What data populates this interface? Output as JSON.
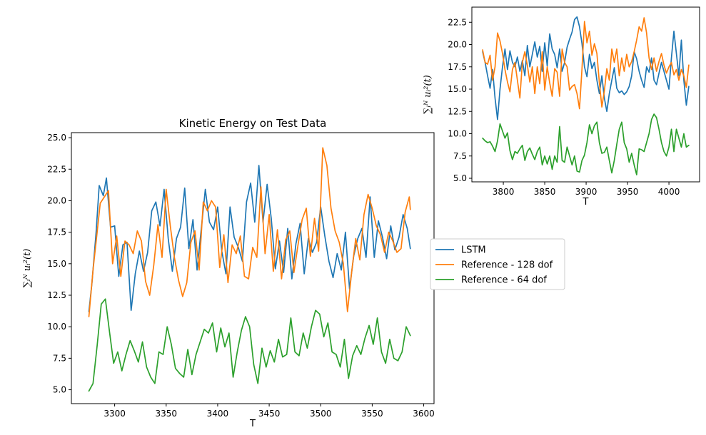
{
  "chart_data": [
    {
      "type": "line",
      "title": "Kinetic Energy on Test Data",
      "xlabel": "T",
      "ylabel": "∑ᵢᴺ uᵢ²(t)",
      "xlim": [
        3258,
        3610
      ],
      "ylim": [
        3.9,
        25.4
      ],
      "xticks": [
        3300,
        3350,
        3400,
        3450,
        3500,
        3550,
        3600
      ],
      "yticks": [
        5.0,
        7.5,
        10.0,
        12.5,
        15.0,
        17.5,
        20.0,
        22.5,
        25.0
      ],
      "ytick_labels": [
        "5.0",
        "7.5",
        "10.0",
        "12.5",
        "15.0",
        "17.5",
        "20.0",
        "22.5",
        "25.0"
      ],
      "grid": false,
      "series": [
        {
          "name": "LSTM",
          "color": "#1f77b4",
          "x": [
            3275,
            3278,
            3282,
            3285,
            3289,
            3292,
            3296,
            3300,
            3304,
            3308,
            3312,
            3316,
            3320,
            3324,
            3328,
            3332,
            3336,
            3340,
            3344,
            3348,
            3352,
            3356,
            3360,
            3364,
            3368,
            3372,
            3376,
            3380,
            3384,
            3388,
            3392,
            3396,
            3400,
            3404,
            3408,
            3412,
            3416,
            3420,
            3424,
            3428,
            3432,
            3436,
            3440,
            3444,
            3448,
            3452,
            3456,
            3460,
            3464,
            3468,
            3472,
            3476,
            3480,
            3484,
            3488,
            3492,
            3496,
            3500,
            3504,
            3508,
            3512,
            3516,
            3520,
            3524,
            3528,
            3532,
            3536,
            3540,
            3544,
            3548,
            3552,
            3556,
            3560,
            3564,
            3568,
            3572,
            3576,
            3580,
            3584,
            3587
          ],
          "y": [
            11.2,
            13.5,
            17.5,
            21.2,
            20.4,
            21.8,
            17.9,
            18.0,
            14.0,
            16.5,
            16.7,
            11.3,
            14.2,
            16.0,
            14.4,
            15.9,
            19.2,
            19.9,
            18.0,
            20.9,
            17.0,
            14.4,
            17.0,
            17.9,
            21.0,
            16.2,
            18.5,
            14.5,
            17.7,
            20.9,
            18.3,
            17.7,
            19.5,
            16.0,
            14.2,
            19.5,
            17.1,
            16.3,
            15.2,
            19.9,
            21.4,
            18.3,
            22.8,
            18.3,
            21.3,
            18.6,
            14.6,
            16.8,
            14.3,
            17.8,
            13.8,
            16.6,
            18.2,
            14.2,
            17.0,
            15.9,
            16.7,
            19.5,
            17.2,
            15.2,
            13.9,
            15.8,
            14.5,
            17.5,
            13.0,
            15.6,
            17.0,
            17.8,
            15.5,
            20.3,
            15.5,
            18.4,
            17.1,
            15.4,
            18.0,
            16.1,
            17.1,
            18.9,
            17.8,
            16.2
          ]
        },
        {
          "name": "Reference - 128 dof",
          "color": "#ff7f0e",
          "x": [
            3275,
            3279,
            3283,
            3286,
            3290,
            3294,
            3298,
            3302,
            3306,
            3310,
            3314,
            3318,
            3322,
            3326,
            3330,
            3334,
            3338,
            3342,
            3346,
            3350,
            3354,
            3358,
            3362,
            3366,
            3370,
            3374,
            3378,
            3382,
            3386,
            3390,
            3394,
            3398,
            3402,
            3406,
            3410,
            3414,
            3418,
            3422,
            3426,
            3430,
            3434,
            3438,
            3442,
            3446,
            3450,
            3454,
            3458,
            3462,
            3466,
            3470,
            3474,
            3478,
            3482,
            3486,
            3490,
            3494,
            3498,
            3502,
            3506,
            3510,
            3514,
            3518,
            3522,
            3526,
            3530,
            3534,
            3538,
            3542,
            3546,
            3550,
            3554,
            3558,
            3562,
            3566,
            3570,
            3574,
            3578,
            3582,
            3586,
            3587
          ],
          "y": [
            10.8,
            14.5,
            17.5,
            19.8,
            20.3,
            20.8,
            15.0,
            17.2,
            14.0,
            16.8,
            16.5,
            15.8,
            17.6,
            16.8,
            13.6,
            12.5,
            14.9,
            18.1,
            15.5,
            20.9,
            18.0,
            15.5,
            13.7,
            12.4,
            13.5,
            16.7,
            17.6,
            14.5,
            19.9,
            19.2,
            20.0,
            19.5,
            14.7,
            17.3,
            13.5,
            16.5,
            15.8,
            17.2,
            14.0,
            13.8,
            16.3,
            15.5,
            21.1,
            15.8,
            18.9,
            14.4,
            17.7,
            13.8,
            16.9,
            17.6,
            14.3,
            16.5,
            18.5,
            19.4,
            15.6,
            18.6,
            16.0,
            24.2,
            22.8,
            19.4,
            17.6,
            16.7,
            15.0,
            11.2,
            14.3,
            17.0,
            15.3,
            18.9,
            20.5,
            19.4,
            18.0,
            17.3,
            15.9,
            17.5,
            16.8,
            15.9,
            16.2,
            19.1,
            20.3,
            19.3
          ]
        },
        {
          "name": "Reference - 64 dof",
          "color": "#2ca02c",
          "x": [
            3275,
            3279,
            3283,
            3287,
            3291,
            3295,
            3299,
            3303,
            3307,
            3311,
            3315,
            3319,
            3323,
            3327,
            3331,
            3335,
            3339,
            3343,
            3347,
            3351,
            3355,
            3359,
            3363,
            3367,
            3371,
            3375,
            3379,
            3383,
            3387,
            3391,
            3395,
            3399,
            3403,
            3407,
            3411,
            3415,
            3419,
            3423,
            3427,
            3431,
            3435,
            3439,
            3443,
            3447,
            3451,
            3455,
            3459,
            3463,
            3467,
            3471,
            3475,
            3479,
            3483,
            3487,
            3491,
            3495,
            3499,
            3503,
            3507,
            3511,
            3515,
            3519,
            3523,
            3527,
            3531,
            3535,
            3539,
            3543,
            3547,
            3551,
            3555,
            3559,
            3563,
            3567,
            3571,
            3575,
            3579,
            3583,
            3587
          ],
          "y": [
            4.9,
            5.5,
            8.5,
            11.8,
            12.2,
            9.6,
            7.1,
            8.0,
            6.5,
            7.8,
            8.9,
            8.1,
            7.2,
            8.8,
            6.8,
            6.0,
            5.5,
            8.0,
            7.8,
            10.0,
            8.6,
            6.7,
            6.3,
            6.0,
            8.2,
            6.2,
            7.8,
            8.8,
            9.8,
            9.5,
            10.3,
            8.0,
            9.9,
            8.4,
            9.5,
            6.0,
            8.0,
            9.7,
            10.8,
            10.0,
            7.0,
            5.5,
            8.3,
            6.8,
            8.1,
            7.2,
            9.0,
            7.6,
            7.8,
            10.7,
            8.0,
            7.7,
            9.5,
            8.3,
            10.0,
            11.3,
            11.0,
            9.2,
            10.3,
            8.0,
            7.8,
            6.8,
            9.0,
            5.9,
            7.7,
            8.5,
            7.8,
            9.1,
            10.1,
            8.6,
            10.7,
            8.0,
            7.1,
            9.0,
            7.5,
            7.3,
            8.0,
            10.0,
            9.3
          ]
        }
      ]
    },
    {
      "type": "line",
      "title": "",
      "xlabel": "T",
      "ylabel": "∑ᵢᴺ uᵢ²(t)",
      "xlim": [
        3762,
        4037
      ],
      "ylim": [
        4.6,
        24.2
      ],
      "xticks": [
        3800,
        3850,
        3900,
        3950,
        4000
      ],
      "yticks": [
        5.0,
        7.5,
        10.0,
        12.5,
        15.0,
        17.5,
        20.0,
        22.5
      ],
      "ytick_labels": [
        "5.0",
        "7.5",
        "10.0",
        "12.5",
        "15.0",
        "17.5",
        "20.0",
        "22.5"
      ],
      "grid": false,
      "series": [
        {
          "name": "LSTM",
          "color": "#1f77b4",
          "x": [
            3775,
            3778,
            3781,
            3784,
            3787,
            3790,
            3793,
            3796,
            3799,
            3802,
            3805,
            3808,
            3811,
            3814,
            3817,
            3820,
            3823,
            3826,
            3829,
            3832,
            3835,
            3838,
            3841,
            3844,
            3847,
            3850,
            3853,
            3856,
            3859,
            3862,
            3865,
            3868,
            3871,
            3874,
            3877,
            3880,
            3883,
            3886,
            3889,
            3892,
            3895,
            3898,
            3901,
            3904,
            3907,
            3910,
            3913,
            3916,
            3919,
            3922,
            3925,
            3928,
            3931,
            3934,
            3937,
            3940,
            3943,
            3946,
            3949,
            3952,
            3955,
            3958,
            3961,
            3964,
            3967,
            3970,
            3973,
            3976,
            3979,
            3982,
            3985,
            3988,
            3991,
            3994,
            3997,
            4000,
            4003,
            4006,
            4009,
            4012,
            4015,
            4018,
            4021,
            4024
          ],
          "y": [
            19.2,
            18.0,
            16.5,
            15.1,
            17.2,
            14.0,
            11.6,
            15.0,
            17.5,
            19.5,
            17.2,
            19.3,
            18.0,
            17.5,
            18.6,
            17.0,
            18.2,
            16.5,
            19.9,
            17.5,
            18.9,
            20.3,
            18.6,
            19.8,
            17.0,
            20.2,
            17.6,
            21.2,
            19.5,
            18.9,
            17.4,
            19.5,
            17.0,
            18.0,
            19.7,
            20.6,
            21.4,
            22.8,
            23.1,
            22.0,
            20.1,
            17.5,
            16.4,
            18.9,
            17.3,
            18.0,
            16.0,
            14.5,
            16.5,
            14.0,
            12.5,
            14.5,
            16.0,
            17.4,
            15.1,
            14.6,
            14.8,
            14.4,
            14.7,
            15.3,
            16.5,
            19.2,
            18.4,
            17.0,
            16.0,
            15.2,
            17.5,
            16.9,
            18.5,
            16.0,
            15.5,
            16.8,
            18.0,
            17.0,
            16.0,
            15.0,
            18.5,
            21.5,
            19.0,
            16.5,
            20.5,
            16.0,
            13.2,
            15.3
          ]
        },
        {
          "name": "Reference - 128 dof",
          "color": "#ff7f0e",
          "x": [
            3775,
            3778,
            3781,
            3784,
            3787,
            3790,
            3793,
            3796,
            3799,
            3802,
            3805,
            3808,
            3811,
            3814,
            3817,
            3820,
            3823,
            3826,
            3829,
            3832,
            3835,
            3838,
            3841,
            3844,
            3847,
            3850,
            3853,
            3856,
            3859,
            3862,
            3865,
            3868,
            3871,
            3874,
            3877,
            3880,
            3883,
            3886,
            3889,
            3892,
            3895,
            3898,
            3901,
            3904,
            3907,
            3910,
            3913,
            3916,
            3919,
            3922,
            3925,
            3928,
            3931,
            3934,
            3937,
            3940,
            3943,
            3946,
            3949,
            3952,
            3955,
            3958,
            3961,
            3964,
            3967,
            3970,
            3973,
            3976,
            3979,
            3982,
            3985,
            3988,
            3991,
            3994,
            3997,
            4000,
            4003,
            4006,
            4009,
            4012,
            4015,
            4018,
            4021,
            4024
          ],
          "y": [
            19.4,
            18.0,
            17.8,
            18.8,
            16.0,
            17.5,
            21.3,
            20.4,
            19.0,
            17.2,
            15.8,
            14.7,
            17.2,
            18.0,
            16.0,
            14.0,
            18.0,
            19.2,
            17.7,
            15.8,
            17.5,
            14.5,
            17.5,
            15.6,
            19.2,
            14.9,
            17.5,
            15.7,
            14.2,
            17.3,
            16.9,
            14.2,
            19.5,
            18.0,
            17.5,
            14.9,
            15.3,
            15.5,
            14.5,
            12.8,
            17.3,
            22.6,
            20.2,
            21.5,
            18.8,
            20.1,
            19.0,
            15.7,
            13.0,
            14.8,
            17.3,
            16.0,
            19.5,
            18.0,
            19.5,
            16.5,
            18.5,
            17.0,
            18.9,
            17.5,
            18.1,
            19.2,
            20.5,
            22.0,
            21.5,
            23.0,
            21.3,
            18.5,
            17.2,
            18.5,
            17.0,
            18.1,
            19.0,
            17.7,
            16.8,
            17.5,
            18.0,
            16.6,
            17.2,
            16.0,
            17.2,
            16.5,
            15.2,
            17.7
          ]
        },
        {
          "name": "Reference - 64 dof",
          "color": "#2ca02c",
          "x": [
            3775,
            3778,
            3781,
            3784,
            3787,
            3790,
            3793,
            3796,
            3799,
            3802,
            3805,
            3808,
            3811,
            3814,
            3817,
            3820,
            3823,
            3826,
            3829,
            3832,
            3835,
            3838,
            3841,
            3844,
            3847,
            3850,
            3853,
            3856,
            3859,
            3862,
            3865,
            3868,
            3871,
            3874,
            3877,
            3880,
            3883,
            3886,
            3889,
            3892,
            3895,
            3898,
            3901,
            3904,
            3907,
            3910,
            3913,
            3916,
            3919,
            3922,
            3925,
            3928,
            3931,
            3934,
            3937,
            3940,
            3943,
            3946,
            3949,
            3952,
            3955,
            3958,
            3961,
            3964,
            3967,
            3970,
            3973,
            3976,
            3979,
            3982,
            3985,
            3988,
            3991,
            3994,
            3997,
            4000,
            4003,
            4006,
            4009,
            4012,
            4015,
            4018,
            4021,
            4024
          ],
          "y": [
            9.5,
            9.2,
            9.0,
            9.1,
            8.6,
            8.0,
            9.2,
            11.1,
            10.3,
            9.5,
            10.1,
            8.1,
            7.1,
            8.0,
            7.8,
            8.3,
            8.7,
            7.0,
            8.0,
            8.4,
            7.7,
            7.1,
            8.0,
            8.5,
            6.5,
            7.5,
            6.6,
            7.5,
            6.0,
            7.5,
            6.8,
            10.8,
            7.0,
            6.8,
            8.5,
            7.5,
            6.5,
            7.5,
            5.8,
            5.7,
            7.0,
            7.6,
            9.0,
            11.0,
            10.0,
            10.9,
            11.3,
            9.0,
            7.8,
            7.9,
            8.5,
            7.0,
            5.6,
            7.0,
            8.8,
            10.5,
            11.3,
            9.0,
            8.3,
            6.8,
            7.8,
            6.5,
            5.4,
            8.3,
            8.2,
            8.0,
            9.0,
            10.0,
            11.6,
            12.2,
            11.8,
            10.5,
            9.0,
            8.0,
            7.5,
            8.5,
            10.5,
            8.0,
            10.5,
            9.5,
            8.5,
            10.0,
            8.5,
            8.7
          ]
        }
      ]
    }
  ],
  "legend": {
    "placement": "right of main chart",
    "entries": [
      "LSTM",
      "Reference - 128 dof",
      "Reference - 64 dof"
    ]
  }
}
